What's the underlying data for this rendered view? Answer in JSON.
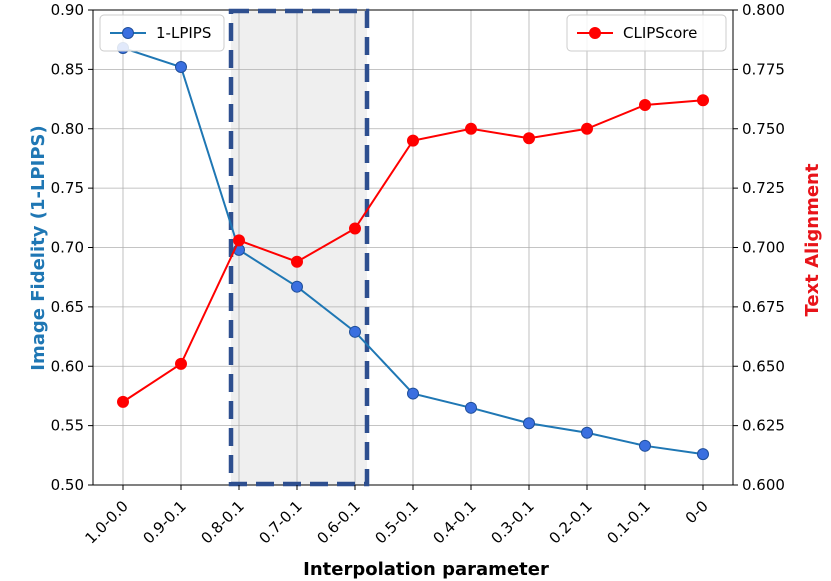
{
  "chart_data": {
    "type": "line",
    "categories": [
      "1.0-0.0",
      "0.9-0.1",
      "0.8-0.1",
      "0.7-0.1",
      "0.6-0.1",
      "0.5-0.1",
      "0.4-0.1",
      "0.3-0.1",
      "0.2-0.1",
      "0.1-0.1",
      "0-0"
    ],
    "xlabel": "Interpolation parameter",
    "ylabel_left": "Image Fidelity (1-LPIPS)",
    "ylabel_right": "Text Alignment",
    "ylim_left": [
      0.5,
      0.9
    ],
    "ylim_right": [
      0.6,
      0.8
    ],
    "yticks_left": [
      "0.50",
      "0.55",
      "0.60",
      "0.65",
      "0.70",
      "0.75",
      "0.80",
      "0.85",
      "0.90"
    ],
    "yticks_right": [
      "0.600",
      "0.625",
      "0.650",
      "0.675",
      "0.700",
      "0.725",
      "0.750",
      "0.775",
      "0.800"
    ],
    "grid": true,
    "highlight_range": [
      "0.8-0.1",
      "0.6-0.1"
    ],
    "series": [
      {
        "name": "1-LPIPS",
        "axis": "left",
        "color": "#1f77b4",
        "marker_fill": "#3a6fe0",
        "legend_position": "top-left",
        "values": [
          0.868,
          0.852,
          0.698,
          0.667,
          0.629,
          0.577,
          0.565,
          0.552,
          0.544,
          0.533,
          0.526
        ]
      },
      {
        "name": "CLIPScore",
        "axis": "right",
        "color": "#ff0000",
        "marker_fill": "#ff0000",
        "legend_position": "top-right",
        "values": [
          0.635,
          0.651,
          0.703,
          0.694,
          0.708,
          0.745,
          0.75,
          0.746,
          0.75,
          0.76,
          0.762
        ]
      }
    ]
  }
}
